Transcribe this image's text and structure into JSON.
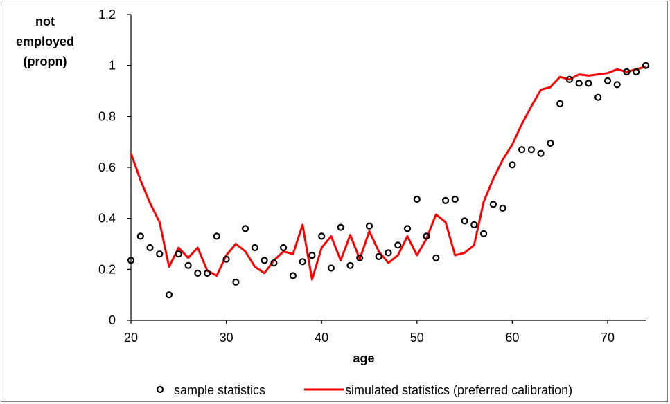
{
  "chart_data": {
    "type": "line",
    "title": "",
    "xlabel": "age",
    "ylabel_lines": [
      "not",
      "employed",
      "(propn)"
    ],
    "xlim": [
      20,
      74
    ],
    "ylim": [
      0,
      1.2
    ],
    "x_ticks": [
      20,
      30,
      40,
      50,
      60,
      70
    ],
    "y_ticks": [
      0,
      0.2,
      0.4,
      0.6,
      0.8,
      1,
      1.2
    ],
    "x_tick_labels": [
      "20",
      "30",
      "40",
      "50",
      "60",
      "70"
    ],
    "y_tick_labels": [
      "0",
      "0.2",
      "0.4",
      "0.6",
      "0.8",
      "1",
      "1.2"
    ],
    "grid": false,
    "legend_position": "bottom",
    "series": [
      {
        "name": "sample statistics",
        "style": "markers",
        "color": "#000000",
        "x": [
          20,
          21,
          22,
          23,
          24,
          25,
          26,
          27,
          28,
          29,
          30,
          31,
          32,
          33,
          34,
          35,
          36,
          37,
          38,
          39,
          40,
          41,
          42,
          43,
          44,
          45,
          46,
          47,
          48,
          49,
          50,
          51,
          52,
          53,
          54,
          55,
          56,
          57,
          58,
          59,
          60,
          61,
          62,
          63,
          64,
          65,
          66,
          67,
          68,
          69,
          70,
          71,
          72,
          73,
          74
        ],
        "y": [
          0.235,
          0.33,
          0.285,
          0.26,
          0.1,
          0.26,
          0.215,
          0.185,
          0.185,
          0.33,
          0.24,
          0.15,
          0.36,
          0.285,
          0.235,
          0.225,
          0.285,
          0.175,
          0.23,
          0.255,
          0.33,
          0.205,
          0.365,
          0.215,
          0.245,
          0.37,
          0.25,
          0.265,
          0.295,
          0.36,
          0.475,
          0.33,
          0.245,
          0.47,
          0.475,
          0.39,
          0.375,
          0.34,
          0.455,
          0.44,
          0.61,
          0.67,
          0.67,
          0.655,
          0.695,
          0.85,
          0.945,
          0.93,
          0.93,
          0.875,
          0.94,
          0.925,
          0.975,
          0.975,
          1.0
        ]
      },
      {
        "name": "simulated statistics (preferred calibration)",
        "style": "line",
        "color": "#ff0000",
        "x": [
          20,
          21,
          22,
          23,
          24,
          25,
          26,
          27,
          28,
          29,
          30,
          31,
          32,
          33,
          34,
          35,
          36,
          37,
          38,
          39,
          40,
          41,
          42,
          43,
          44,
          45,
          46,
          47,
          48,
          49,
          50,
          51,
          52,
          53,
          54,
          55,
          56,
          57,
          58,
          59,
          60,
          61,
          62,
          63,
          64,
          65,
          66,
          67,
          68,
          69,
          70,
          71,
          72,
          73,
          74
        ],
        "y": [
          0.655,
          0.55,
          0.46,
          0.385,
          0.21,
          0.285,
          0.245,
          0.285,
          0.195,
          0.175,
          0.255,
          0.3,
          0.27,
          0.21,
          0.185,
          0.235,
          0.27,
          0.26,
          0.375,
          0.16,
          0.285,
          0.33,
          0.235,
          0.335,
          0.24,
          0.35,
          0.27,
          0.225,
          0.255,
          0.33,
          0.255,
          0.32,
          0.415,
          0.385,
          0.255,
          0.265,
          0.295,
          0.465,
          0.555,
          0.63,
          0.69,
          0.77,
          0.84,
          0.905,
          0.915,
          0.955,
          0.945,
          0.965,
          0.96,
          0.965,
          0.97,
          0.985,
          0.975,
          0.985,
          0.995
        ]
      }
    ]
  }
}
